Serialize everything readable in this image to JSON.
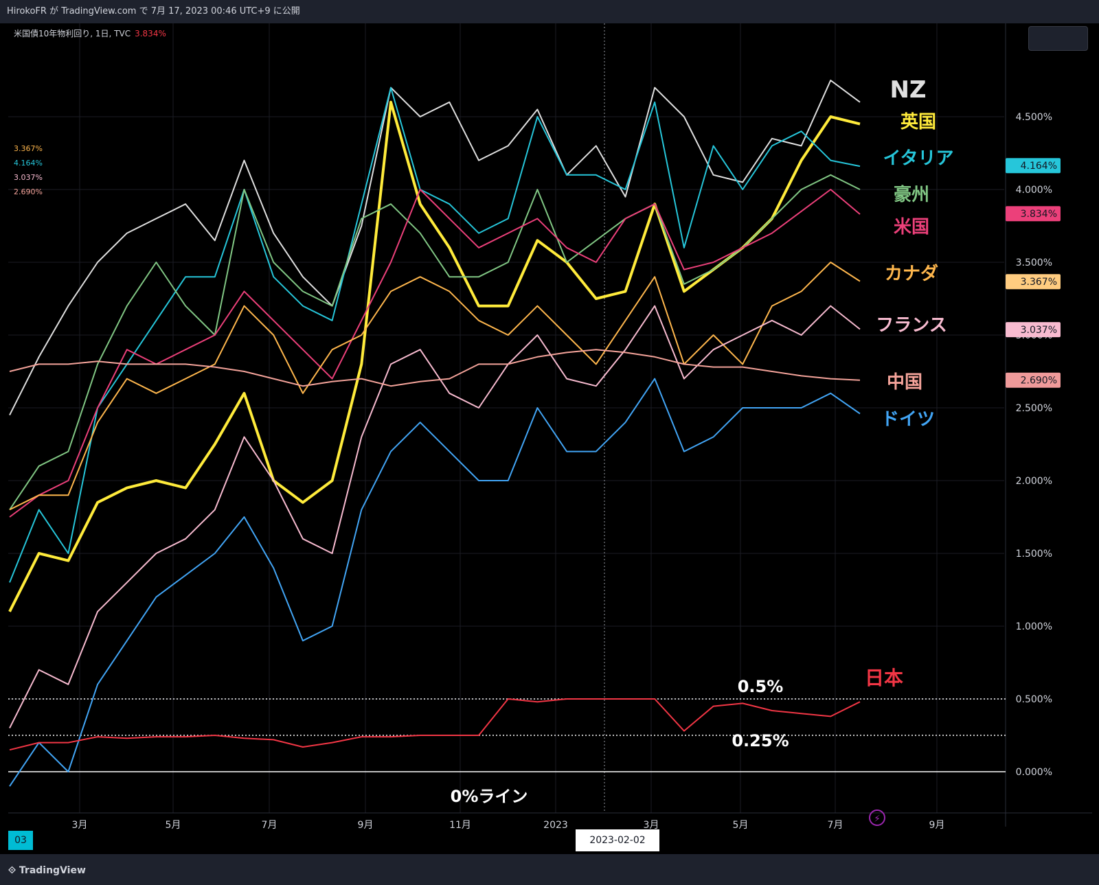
{
  "header": {
    "title": "HirokoFR が TradingView.com で 7月 17, 2023 00:46 UTC+9 に公開"
  },
  "legend": {
    "symbol": "米国債10年物利回り, 1日, TVC",
    "value": "3.834%"
  },
  "mini_legend": [
    {
      "text": "3.367%",
      "color": "#ffb74d"
    },
    {
      "text": "4.164%",
      "color": "#26c6da"
    },
    {
      "text": "3.037%",
      "color": "#f8bbd0"
    },
    {
      "text": "2.690%",
      "color": "#f4a39a"
    }
  ],
  "footer": {
    "brand": "TradingView",
    "crosshair_date": "2023-02-02",
    "left_date": "03"
  },
  "chart_data": {
    "type": "line",
    "x_ticks": [
      "3月",
      "5月",
      "7月",
      "9月",
      "11月",
      "2023",
      "3月",
      "5月",
      "7月",
      "9月"
    ],
    "y_ticks": [
      "0.000%",
      "0.500%",
      "1.000%",
      "1.500%",
      "2.000%",
      "2.500%",
      "3.000%",
      "3.500%",
      "4.000%",
      "4.500%"
    ],
    "ylim": [
      -0.2,
      5.0
    ],
    "reference_lines": [
      {
        "y": 0.5,
        "label": "0.5%",
        "style": "dotted"
      },
      {
        "y": 0.25,
        "label": "0.25%",
        "style": "dotted"
      },
      {
        "y": 0.0,
        "label": "0%ライン",
        "style": "solid"
      }
    ],
    "price_labels": [
      {
        "text": "4.164%",
        "y": 4.164,
        "bg": "#26c6da"
      },
      {
        "text": "3.834%",
        "y": 3.834,
        "bg": "#ec407a"
      },
      {
        "text": "3.367%",
        "y": 3.367,
        "bg": "#ffcc80"
      },
      {
        "text": "3.037%",
        "y": 3.037,
        "bg": "#f8bbd0"
      },
      {
        "text": "2.690%",
        "y": 2.69,
        "bg": "#ef9a9a"
      }
    ],
    "series": [
      {
        "name": "NZ",
        "color": "#e0e0e0",
        "width": 2,
        "values": [
          2.45,
          2.85,
          3.2,
          3.5,
          3.7,
          3.8,
          3.9,
          3.65,
          4.2,
          3.7,
          3.4,
          3.2,
          3.75,
          4.7,
          4.5,
          4.6,
          4.2,
          4.3,
          4.55,
          4.1,
          4.3,
          3.95,
          4.7,
          4.5,
          4.1,
          4.05,
          4.35,
          4.3,
          4.75,
          4.6
        ]
      },
      {
        "name": "英国",
        "color": "#ffeb3b",
        "width": 4,
        "values": [
          1.1,
          1.5,
          1.45,
          1.85,
          1.95,
          2.0,
          1.95,
          2.25,
          2.6,
          2.0,
          1.85,
          2.0,
          2.8,
          4.6,
          3.9,
          3.6,
          3.2,
          3.2,
          3.65,
          3.5,
          3.25,
          3.3,
          3.9,
          3.3,
          3.45,
          3.6,
          3.8,
          4.2,
          4.5,
          4.45
        ]
      },
      {
        "name": "イタリア",
        "color": "#26c6da",
        "width": 2,
        "values": [
          1.3,
          1.8,
          1.5,
          2.5,
          2.8,
          3.1,
          3.4,
          3.4,
          4.0,
          3.4,
          3.2,
          3.1,
          3.9,
          4.7,
          4.0,
          3.9,
          3.7,
          3.8,
          4.5,
          4.1,
          4.1,
          4.0,
          4.6,
          3.6,
          4.3,
          4.0,
          4.3,
          4.4,
          4.2,
          4.16
        ]
      },
      {
        "name": "豪州",
        "color": "#81c784",
        "width": 2,
        "values": [
          1.8,
          2.1,
          2.2,
          2.8,
          3.2,
          3.5,
          3.2,
          3.0,
          4.0,
          3.5,
          3.3,
          3.2,
          3.8,
          3.9,
          3.7,
          3.4,
          3.4,
          3.5,
          4.0,
          3.5,
          3.65,
          3.8,
          3.9,
          3.35,
          3.45,
          3.6,
          3.8,
          4.0,
          4.1,
          4.0
        ]
      },
      {
        "name": "米国",
        "color": "#ec407a",
        "width": 2,
        "values": [
          1.75,
          1.9,
          2.0,
          2.5,
          2.9,
          2.8,
          2.9,
          3.0,
          3.3,
          3.1,
          2.9,
          2.7,
          3.1,
          3.5,
          4.0,
          3.8,
          3.6,
          3.7,
          3.8,
          3.6,
          3.5,
          3.8,
          3.9,
          3.45,
          3.5,
          3.6,
          3.7,
          3.85,
          4.0,
          3.83
        ]
      },
      {
        "name": "カナダ",
        "color": "#ffb74d",
        "width": 2,
        "values": [
          1.8,
          1.9,
          1.9,
          2.4,
          2.7,
          2.6,
          2.7,
          2.8,
          3.2,
          3.0,
          2.6,
          2.9,
          3.0,
          3.3,
          3.4,
          3.3,
          3.1,
          3.0,
          3.2,
          3.0,
          2.8,
          3.1,
          3.4,
          2.8,
          3.0,
          2.8,
          3.2,
          3.3,
          3.5,
          3.37
        ]
      },
      {
        "name": "フランス",
        "color": "#f8bbd0",
        "width": 2,
        "values": [
          0.3,
          0.7,
          0.6,
          1.1,
          1.3,
          1.5,
          1.6,
          1.8,
          2.3,
          2.0,
          1.6,
          1.5,
          2.3,
          2.8,
          2.9,
          2.6,
          2.5,
          2.8,
          3.0,
          2.7,
          2.65,
          2.9,
          3.2,
          2.7,
          2.9,
          3.0,
          3.1,
          3.0,
          3.2,
          3.04
        ]
      },
      {
        "name": "中国",
        "color": "#f4a39a",
        "width": 2,
        "values": [
          2.75,
          2.8,
          2.8,
          2.82,
          2.8,
          2.8,
          2.8,
          2.78,
          2.75,
          2.7,
          2.65,
          2.68,
          2.7,
          2.65,
          2.68,
          2.7,
          2.8,
          2.8,
          2.85,
          2.88,
          2.9,
          2.88,
          2.85,
          2.8,
          2.78,
          2.78,
          2.75,
          2.72,
          2.7,
          2.69
        ]
      },
      {
        "name": "ドイツ",
        "color": "#42a5f5",
        "width": 2,
        "values": [
          -0.1,
          0.2,
          0.0,
          0.6,
          0.9,
          1.2,
          1.35,
          1.5,
          1.75,
          1.4,
          0.9,
          1.0,
          1.8,
          2.2,
          2.4,
          2.2,
          2.0,
          2.0,
          2.5,
          2.2,
          2.2,
          2.4,
          2.7,
          2.2,
          2.3,
          2.5,
          2.5,
          2.5,
          2.6,
          2.46
        ]
      },
      {
        "name": "日本",
        "color": "#f23645",
        "width": 2,
        "values": [
          0.15,
          0.2,
          0.2,
          0.24,
          0.23,
          0.24,
          0.24,
          0.25,
          0.23,
          0.22,
          0.17,
          0.2,
          0.24,
          0.24,
          0.25,
          0.25,
          0.25,
          0.5,
          0.48,
          0.5,
          0.5,
          0.5,
          0.5,
          0.28,
          0.45,
          0.47,
          0.42,
          0.4,
          0.38,
          0.48
        ]
      }
    ]
  }
}
